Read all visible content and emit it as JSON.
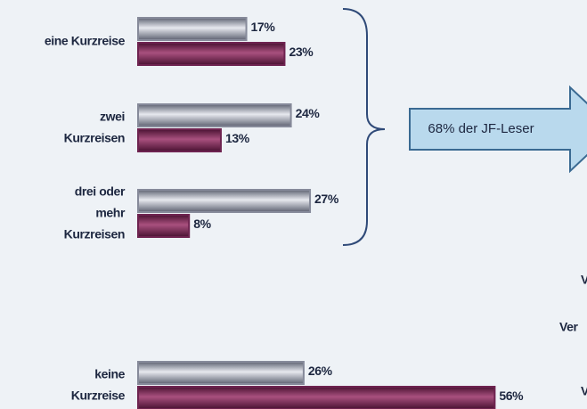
{
  "chart_data": {
    "type": "bar",
    "orientation": "horizontal",
    "categories": [
      "eine Kurzreise",
      "zwei\nKurzreisen",
      "drei oder\nmehr\nKurzreisen",
      "keine\nKurzreise"
    ],
    "series": [
      {
        "color": "#868a9a",
        "values": [
          17,
          24,
          27,
          26
        ],
        "value_labels": [
          "17%",
          "24%",
          "27%",
          "26%"
        ]
      },
      {
        "color": "#6e2350",
        "values": [
          23,
          13,
          8,
          56
        ],
        "value_labels": [
          "23%",
          "13%",
          "8%",
          "56%"
        ]
      }
    ],
    "annotations": [
      "68% der JF-Leser",
      "V",
      "Ver",
      "V"
    ]
  }
}
